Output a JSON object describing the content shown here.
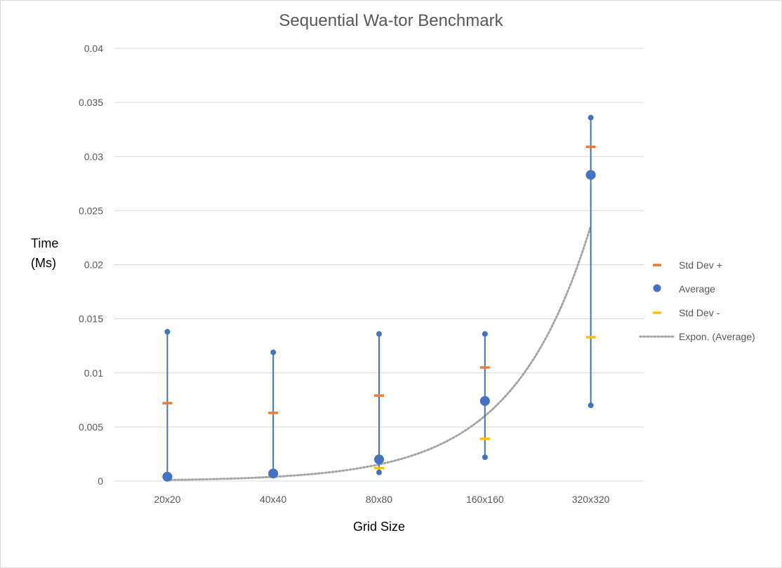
{
  "chart_data": {
    "type": "scatter",
    "title": "Sequential Wa-tor Benchmark",
    "xlabel": "Grid Size",
    "ylabel": "Time\n(Ms)",
    "categories": [
      "20x20",
      "40x40",
      "80x80",
      "160x160",
      "320x320"
    ],
    "ylim": [
      0,
      0.04
    ],
    "yticks": [
      0,
      0.005,
      0.01,
      0.015,
      0.02,
      0.025,
      0.03,
      0.035,
      0.04
    ],
    "ytick_labels": [
      "0",
      "0.005",
      "0.01",
      "0.015",
      "0.02",
      "0.025",
      "0.03",
      "0.035",
      "0.04"
    ],
    "grid": true,
    "legend_position": "right",
    "range": {
      "max": [
        0.0138,
        0.0119,
        0.0136,
        0.0136,
        0.0336
      ],
      "min": [
        0.0003,
        0.0005,
        0.0008,
        0.0022,
        0.007
      ]
    },
    "series": [
      {
        "name": "Std Dev +",
        "marker": "dash",
        "color": "#ed7d31",
        "values": [
          0.0072,
          0.0063,
          0.0079,
          0.0105,
          0.0309
        ]
      },
      {
        "name": "Average",
        "marker": "circle",
        "color": "#4472c4",
        "values": [
          0.0004,
          0.0007,
          0.002,
          0.0074,
          0.0283
        ]
      },
      {
        "name": "Std Dev -",
        "marker": "dash",
        "color": "#ffc000",
        "values": [
          0.0004,
          0.0005,
          0.0012,
          0.0039,
          0.0133
        ]
      },
      {
        "name": "Expon. (Average)",
        "marker": "dotted-line",
        "color": "#a5a5a5",
        "values": [
          0.0001,
          0.0004,
          0.0023,
          0.0073,
          0.0236
        ]
      }
    ]
  }
}
